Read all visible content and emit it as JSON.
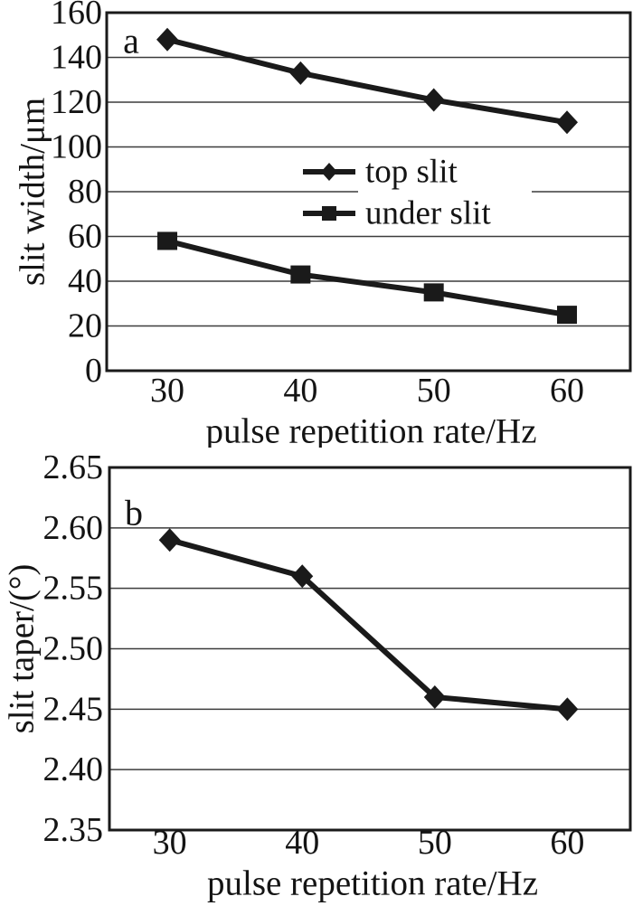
{
  "figure": {
    "background": "#ffffff",
    "text_color": "#141414",
    "line_color": "#1a1a1a",
    "grid_color": "#3c3c3c",
    "border_color": "#1a1a1a"
  },
  "chart_data": [
    {
      "id": "a",
      "type": "line",
      "panel_label": "a",
      "xlabel": "pulse repetition rate/Hz",
      "ylabel": "slit width/μm",
      "x": [
        30,
        40,
        50,
        60
      ],
      "x_tick_labels": [
        "30",
        "40",
        "50",
        "60"
      ],
      "xlim": [
        25.45,
        64.75
      ],
      "ylim": [
        0,
        160
      ],
      "y_tick_values": [
        0,
        20,
        40,
        60,
        80,
        100,
        120,
        140,
        160
      ],
      "y_tick_labels": [
        "0",
        "20",
        "40",
        "60",
        "80",
        "100",
        "120",
        "140",
        "160"
      ],
      "grid": "horizontal",
      "series": [
        {
          "name": "top slit",
          "marker": "diamond",
          "values": [
            148,
            133,
            121,
            111
          ]
        },
        {
          "name": "under slit",
          "marker": "square",
          "values": [
            58,
            43,
            35,
            25
          ]
        }
      ],
      "legend": {
        "position": "upper-center-inside",
        "entries": [
          "top slit",
          "under slit"
        ]
      }
    },
    {
      "id": "b",
      "type": "line",
      "panel_label": "b",
      "xlabel": "pulse repetition rate/Hz",
      "ylabel": "slit taper/(°)",
      "x": [
        30,
        40,
        50,
        60
      ],
      "x_tick_labels": [
        "30",
        "40",
        "50",
        "60"
      ],
      "xlim": [
        25.45,
        64.75
      ],
      "ylim": [
        2.35,
        2.65
      ],
      "y_tick_values": [
        2.35,
        2.4,
        2.45,
        2.5,
        2.55,
        2.6,
        2.65
      ],
      "y_tick_labels": [
        "2.35",
        "2.40",
        "2.45",
        "2.50",
        "2.55",
        "2.60",
        "2.65"
      ],
      "grid": "horizontal",
      "series": [
        {
          "name": "slit taper",
          "marker": "diamond",
          "values": [
            2.59,
            2.56,
            2.46,
            2.45
          ]
        }
      ],
      "legend": null
    }
  ]
}
